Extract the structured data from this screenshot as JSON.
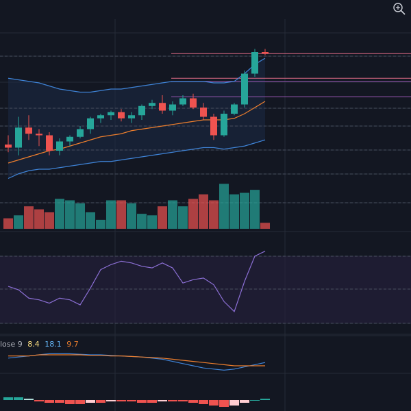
{
  "colors": {
    "background": "#131722",
    "grid": "#262b38",
    "up": "#26a69a",
    "down": "#ef5350",
    "up_volume": "#26a69a",
    "down_volume": "#ef5350",
    "bollinger": "#3f84d8",
    "moving_average": "#ef7f2d",
    "rsi": "#8b6fd4",
    "rsi_band": "#261f3d",
    "macd_line": "#3f84d8",
    "signal_line": "#ef7f2d",
    "hist_up_strong": "#26a69a",
    "hist_up_weak": "#b2dfdb",
    "hist_down_strong": "#ef5350",
    "hist_down_weak": "#ffcdd2",
    "hline_red": "#e06c86",
    "hline_purple": "#9b59b6"
  },
  "toolbar": {
    "zoom_icon": "magnifier-zoom-icon"
  },
  "macd_legend": {
    "label": "lose 9",
    "macd_value": "8.4",
    "signal_value": "18.1",
    "histogram_value": "9.7"
  },
  "chart_data": {
    "type": "candlestick",
    "x_axis": "bar index",
    "price_range": [
      0,
      100
    ],
    "candles": [
      {
        "o": 52,
        "h": 58,
        "l": 47,
        "c": 50
      },
      {
        "o": 50,
        "h": 70,
        "l": 45,
        "c": 63
      },
      {
        "o": 63,
        "h": 71,
        "l": 55,
        "c": 59
      },
      {
        "o": 59,
        "h": 62,
        "l": 51,
        "c": 58
      },
      {
        "o": 58,
        "h": 60,
        "l": 45,
        "c": 48
      },
      {
        "o": 48,
        "h": 56,
        "l": 45,
        "c": 54
      },
      {
        "o": 54,
        "h": 58,
        "l": 51,
        "c": 57
      },
      {
        "o": 57,
        "h": 64,
        "l": 56,
        "c": 62
      },
      {
        "o": 62,
        "h": 70,
        "l": 59,
        "c": 69
      },
      {
        "o": 69,
        "h": 72,
        "l": 66,
        "c": 71
      },
      {
        "o": 71,
        "h": 74,
        "l": 68,
        "c": 73
      },
      {
        "o": 73,
        "h": 75,
        "l": 67,
        "c": 69
      },
      {
        "o": 69,
        "h": 73,
        "l": 66,
        "c": 71
      },
      {
        "o": 71,
        "h": 78,
        "l": 68,
        "c": 77
      },
      {
        "o": 77,
        "h": 81,
        "l": 75,
        "c": 79
      },
      {
        "o": 79,
        "h": 84,
        "l": 72,
        "c": 74
      },
      {
        "o": 74,
        "h": 80,
        "l": 71,
        "c": 78
      },
      {
        "o": 78,
        "h": 84,
        "l": 77,
        "c": 82
      },
      {
        "o": 82,
        "h": 85,
        "l": 75,
        "c": 76
      },
      {
        "o": 76,
        "h": 79,
        "l": 68,
        "c": 70
      },
      {
        "o": 70,
        "h": 72,
        "l": 55,
        "c": 58
      },
      {
        "o": 58,
        "h": 74,
        "l": 57,
        "c": 72
      },
      {
        "o": 72,
        "h": 79,
        "l": 71,
        "c": 78
      },
      {
        "o": 78,
        "h": 100,
        "l": 76,
        "c": 98
      },
      {
        "o": 98,
        "h": 114,
        "l": 96,
        "c": 112
      },
      {
        "o": 112,
        "h": 114,
        "l": 110,
        "c": 111
      }
    ],
    "bollinger_upper": [
      95,
      94,
      93,
      92,
      90,
      88,
      87,
      86,
      86,
      87,
      88,
      88,
      89,
      90,
      91,
      92,
      93,
      93,
      93,
      93,
      92,
      92,
      93,
      98,
      104,
      108
    ],
    "bollinger_lower": [
      30,
      33,
      35,
      36,
      36,
      37,
      38,
      39,
      40,
      41,
      41,
      42,
      43,
      44,
      45,
      46,
      47,
      48,
      49,
      50,
      50,
      49,
      50,
      51,
      53,
      55
    ],
    "moving_average": [
      40,
      42,
      44,
      46,
      48,
      49,
      51,
      53,
      55,
      57,
      58,
      59,
      61,
      62,
      63,
      64,
      65,
      66,
      67,
      68,
      68,
      68,
      69,
      72,
      76,
      80
    ],
    "horizontal_levels": [
      {
        "price": 111,
        "style": "solid",
        "color_key": "hline_red"
      },
      {
        "price": 95,
        "style": "solid",
        "color_key": "hline_red"
      },
      {
        "price": 93,
        "style": "solid",
        "color_key": "hline_purple"
      },
      {
        "price": 83,
        "style": "solid",
        "color_key": "hline_purple"
      }
    ],
    "volume": [
      0.35,
      0.45,
      0.75,
      0.65,
      0.55,
      1.0,
      0.95,
      0.85,
      0.55,
      0.3,
      0.95,
      0.95,
      0.85,
      0.5,
      0.45,
      0.75,
      0.95,
      0.75,
      1.0,
      1.15,
      0.95,
      1.5,
      1.15,
      1.2,
      1.3,
      0.2
    ],
    "rsi": [
      52,
      50,
      45,
      44,
      42,
      45,
      44,
      41,
      51,
      62,
      65,
      67,
      66,
      64,
      63,
      66,
      63,
      54,
      56,
      57,
      53,
      43,
      37,
      55,
      70,
      73
    ],
    "rsi_bands": [
      30,
      70
    ],
    "macd": [
      -3,
      -2,
      -1,
      0,
      1,
      1,
      1,
      0.5,
      0,
      0,
      -0.5,
      -1,
      -1.5,
      -2,
      -3,
      -4,
      -6,
      -8,
      -10,
      -12,
      -13,
      -14,
      -13,
      -11,
      -9,
      -7
    ],
    "signal": [
      -1,
      -1,
      -1,
      0,
      0,
      0,
      0,
      0,
      -0.5,
      -0.5,
      -1,
      -1,
      -1.5,
      -2,
      -2.5,
      -3,
      -4,
      -5,
      -6,
      -7,
      -8,
      -9,
      -10,
      -10,
      -10,
      -10
    ],
    "histogram": [
      2,
      2,
      1,
      -1,
      -2,
      -2,
      -3,
      -3,
      -2,
      -2,
      -1,
      -1,
      -1,
      -2,
      -2,
      -1,
      -1,
      -1,
      -2,
      -3,
      -4,
      -5,
      -4,
      -2,
      0,
      1
    ]
  }
}
